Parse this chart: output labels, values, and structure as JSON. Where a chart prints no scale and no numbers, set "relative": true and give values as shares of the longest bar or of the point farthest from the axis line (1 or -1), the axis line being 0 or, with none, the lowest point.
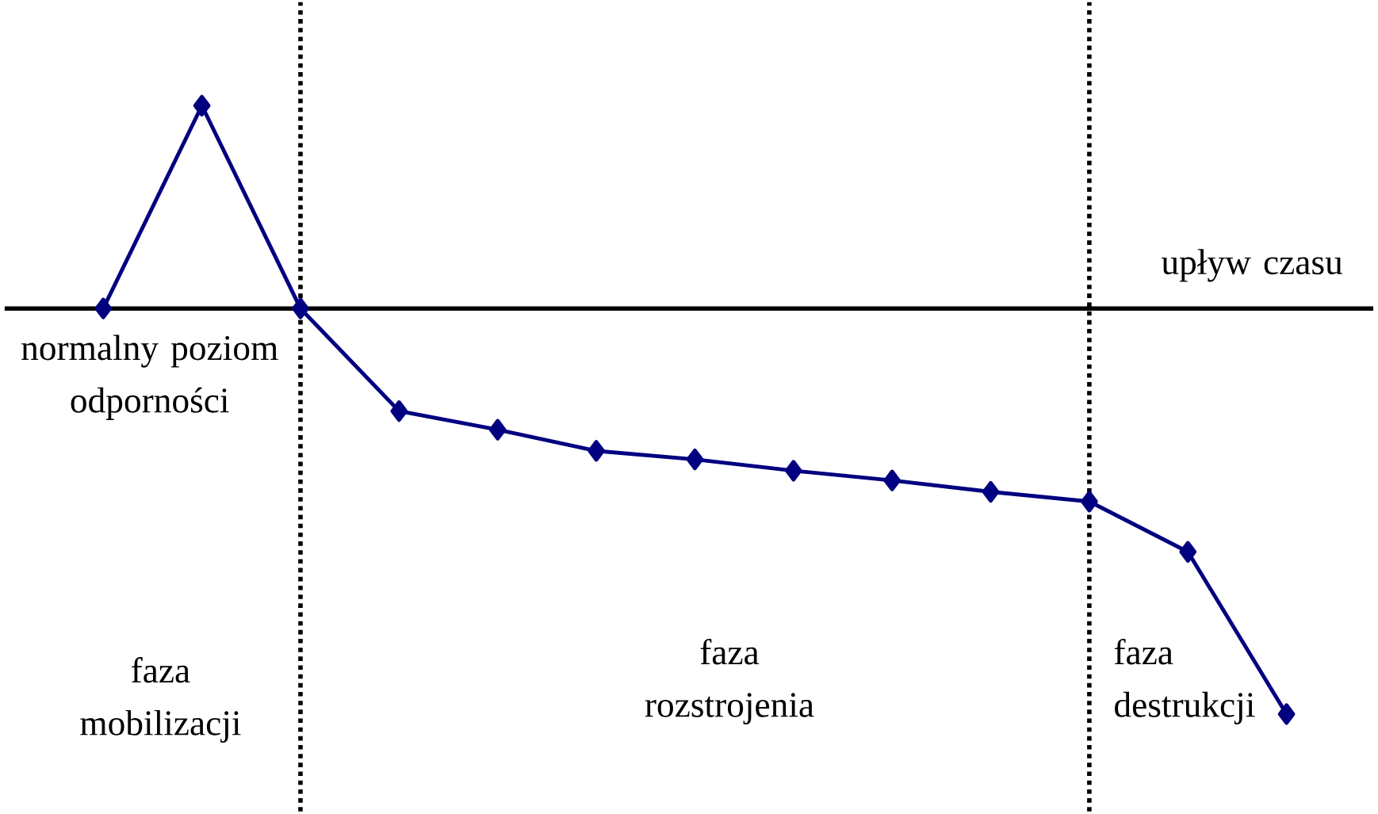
{
  "chart_data": {
    "type": "line",
    "relative": true,
    "categories": [
      null,
      null,
      null,
      null,
      null,
      null,
      null,
      null,
      null,
      null,
      null,
      null,
      null
    ],
    "series": [
      {
        "color": "#000080",
        "values": [
          0,
          0.5,
          0,
          -0.253,
          -0.299,
          -0.351,
          -0.372,
          -0.4,
          -0.424,
          -0.452,
          -0.476,
          -0.6,
          -1
        ]
      }
    ],
    "marker": "diamond",
    "line_style": "solid",
    "annotations": [
      "normalny poziom odporności",
      "upływ czasu",
      "faza mobilizacji",
      "faza rozstrojenia",
      "faza destrukcji"
    ]
  }
}
